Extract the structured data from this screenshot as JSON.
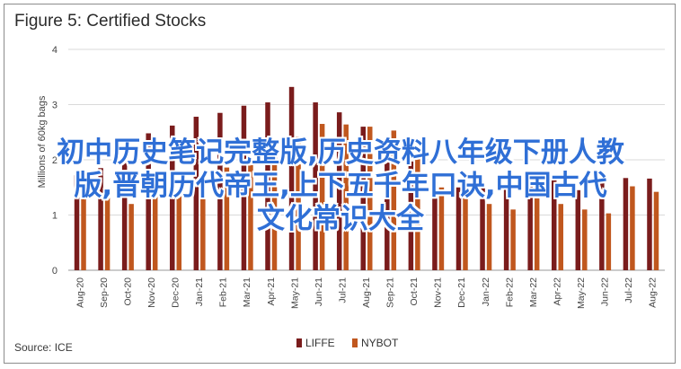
{
  "title": "Figure 5: Certified Stocks",
  "source": "Source: ICE",
  "overlay_text": {
    "line1": "初中历史笔记完整版,历史资料八年级下册人教",
    "line2": "版,晋朝历代帝王,上下五千年口诀,中国古代",
    "line3": "文化常识大全",
    "color": "#2f6fd6"
  },
  "chart_data": {
    "type": "bar",
    "ylabel": "Millions of 60kg bags",
    "ylim": [
      0,
      4
    ],
    "yticks": [
      0,
      1,
      2,
      3,
      4
    ],
    "yticklabels": [
      "0",
      "1",
      "2",
      "3",
      "4"
    ],
    "grid": true,
    "legend_position": "bottom",
    "categories": [
      "Aug-20",
      "Sep-20",
      "Oct-20",
      "Nov-20",
      "Dec-20",
      "Jan-21",
      "Feb-21",
      "Mar-21",
      "Apr-21",
      "May-21",
      "Jun-21",
      "Jul-21",
      "Aug-21",
      "Sep-21",
      "Oct-21",
      "Nov-21",
      "Dec-21",
      "Jan-22",
      "Feb-22",
      "Mar-22",
      "Apr-22",
      "May-22",
      "Jun-22",
      "Jul-22",
      "Aug-22"
    ],
    "series": [
      {
        "name": "LIFFE",
        "color": "#7a1c1c",
        "values": [
          1.72,
          1.85,
          2.08,
          2.48,
          2.62,
          2.78,
          2.85,
          2.98,
          3.04,
          3.32,
          3.04,
          2.86,
          2.6,
          2.17,
          1.97,
          1.6,
          1.5,
          1.6,
          1.55,
          1.6,
          1.65,
          1.45,
          1.67,
          1.67,
          1.66
        ]
      },
      {
        "name": "NYBOT",
        "color": "#c0571e",
        "values": [
          1.55,
          1.45,
          1.2,
          1.4,
          1.45,
          1.55,
          1.86,
          1.96,
          2.14,
          2.42,
          2.65,
          2.64,
          2.6,
          2.53,
          2.02,
          1.5,
          1.3,
          1.2,
          1.1,
          1.3,
          1.2,
          1.1,
          1.03,
          1.52,
          1.42
        ]
      }
    ]
  }
}
